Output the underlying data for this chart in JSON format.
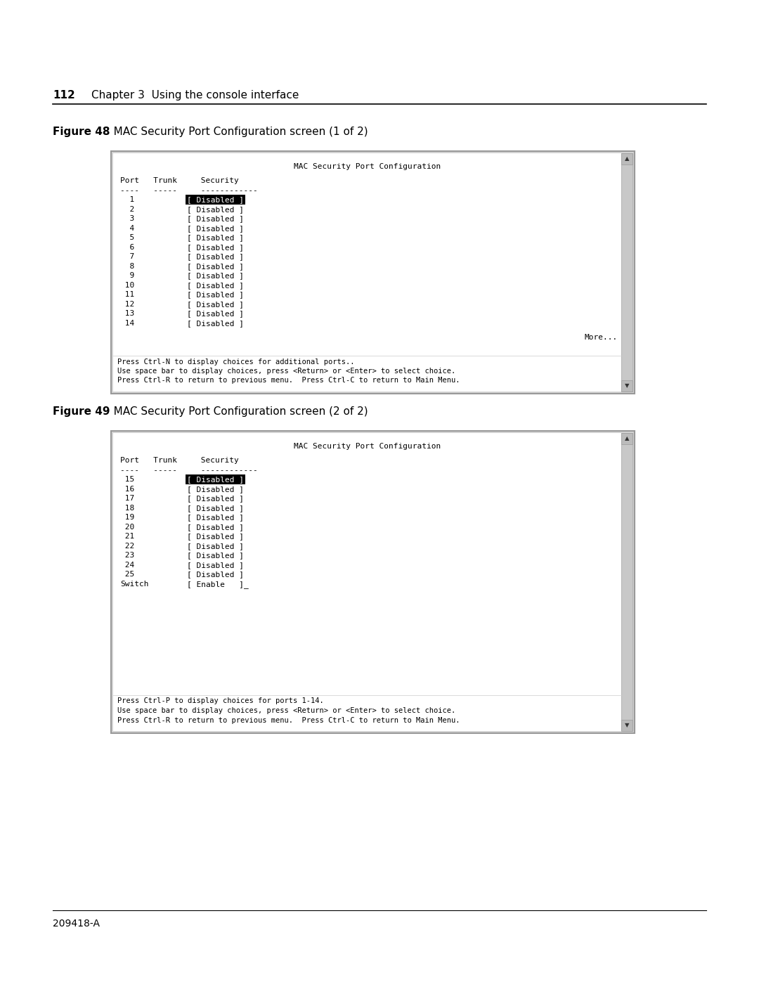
{
  "page_number": "112",
  "chapter_header": "Chapter 3  Using the console interface",
  "figure48_label": "Figure 48",
  "figure48_title": "   MAC Security Port Configuration screen (1 of 2)",
  "figure49_label": "Figure 49",
  "figure49_title": "   MAC Security Port Configuration screen (2 of 2)",
  "footer_text": "209418-A",
  "screen1_title": "MAC Security Port Configuration",
  "screen1_header1": "Port   Trunk     Security",
  "screen1_header2": "----   -----     ------------",
  "screen1_rows": [
    [
      "  1",
      "[ Disabled ]",
      true
    ],
    [
      "  2",
      "[ Disabled ]",
      false
    ],
    [
      "  3",
      "[ Disabled ]",
      false
    ],
    [
      "  4",
      "[ Disabled ]",
      false
    ],
    [
      "  5",
      "[ Disabled ]",
      false
    ],
    [
      "  6",
      "[ Disabled ]",
      false
    ],
    [
      "  7",
      "[ Disabled ]",
      false
    ],
    [
      "  8",
      "[ Disabled ]",
      false
    ],
    [
      "  9",
      "[ Disabled ]",
      false
    ],
    [
      " 10",
      "[ Disabled ]",
      false
    ],
    [
      " 11",
      "[ Disabled ]",
      false
    ],
    [
      " 12",
      "[ Disabled ]",
      false
    ],
    [
      " 13",
      "[ Disabled ]",
      false
    ],
    [
      " 14",
      "[ Disabled ]",
      false
    ]
  ],
  "screen1_more": "More...",
  "screen1_footer1": "Press Ctrl-N to display choices for additional ports..",
  "screen1_footer2": "Use space bar to display choices, press <Return> or <Enter> to select choice.",
  "screen1_footer3": "Press Ctrl-R to return to previous menu.  Press Ctrl-C to return to Main Menu.",
  "screen2_title": "MAC Security Port Configuration",
  "screen2_header1": "Port   Trunk     Security",
  "screen2_header2": "----   -----     ------------",
  "screen2_rows": [
    [
      " 15",
      "[ Disabled ]",
      true
    ],
    [
      " 16",
      "[ Disabled ]",
      false
    ],
    [
      " 17",
      "[ Disabled ]",
      false
    ],
    [
      " 18",
      "[ Disabled ]",
      false
    ],
    [
      " 19",
      "[ Disabled ]",
      false
    ],
    [
      " 20",
      "[ Disabled ]",
      false
    ],
    [
      " 21",
      "[ Disabled ]",
      false
    ],
    [
      " 22",
      "[ Disabled ]",
      false
    ],
    [
      " 23",
      "[ Disabled ]",
      false
    ],
    [
      " 24",
      "[ Disabled ]",
      false
    ],
    [
      " 25",
      "[ Disabled ]",
      false
    ],
    [
      "Switch",
      "[ Enable   ]_",
      false
    ]
  ],
  "screen2_footer1": "Press Ctrl-P to display choices for ports 1-14.",
  "screen2_footer2": "Use space bar to display choices, press <Return> or <Enter> to select choice.",
  "screen2_footer3": "Press Ctrl-R to return to previous menu.  Press Ctrl-C to return to Main Menu.",
  "bg_color": "#ffffff",
  "mono_font": "monospace",
  "normal_font": "DejaVu Sans"
}
